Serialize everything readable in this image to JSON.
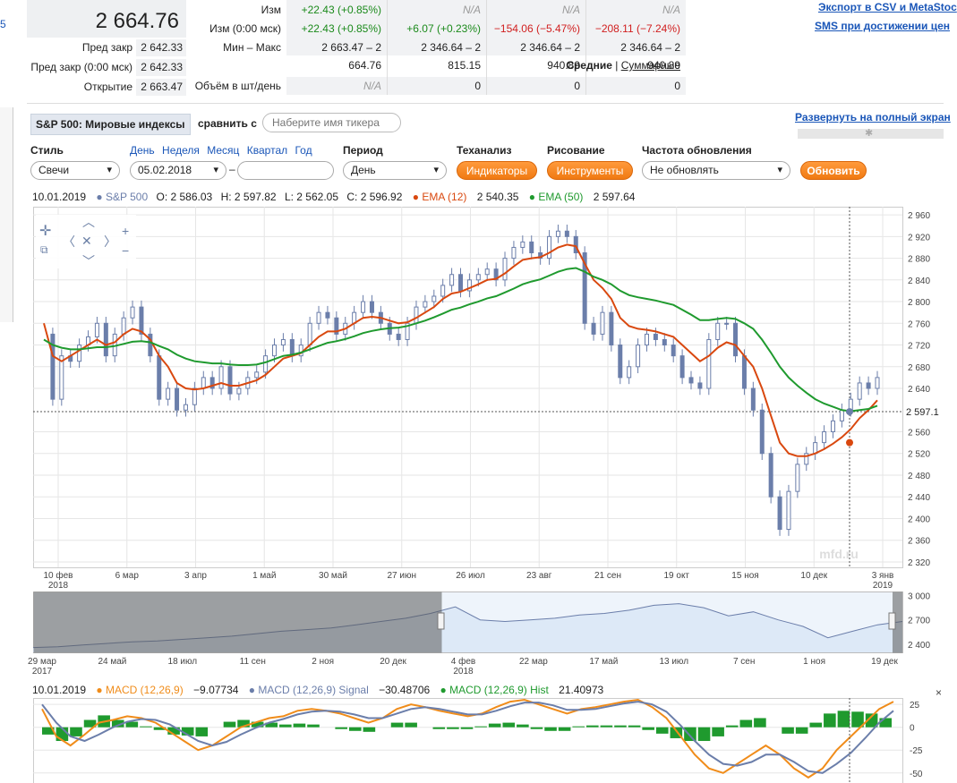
{
  "header": {
    "price": "2 664.76",
    "prev_close_label": "Пред закр",
    "prev_close": "2 642.33",
    "prev_close_msk_label": "Пред закр (0:00 мск)",
    "prev_close_msk": "2 642.33",
    "open_label": "Открытие",
    "open": "2 663.47",
    "export_link": "Экспорт в CSV и MetaStoc",
    "sms_link": "SMS при достижении цен",
    "left_edge_char": "5"
  },
  "stats": {
    "row_labels": [
      "Изм",
      "Изм (0:00 мск)",
      "Мин – Макс"
    ],
    "columns": [
      {
        "chg": "+22.43 (+0.85%)",
        "chg_msk": "+22.43 (+0.85%)",
        "range": "2 663.47 – 2 664.76"
      },
      {
        "chg": "N/A",
        "chg_msk": "+6.07 (+0.23%)",
        "range": "2 346.64 – 2 815.15"
      },
      {
        "chg": "N/A",
        "chg_msk": "−154.06 (−5.47%)",
        "range": "2 346.64 – 2 940.89"
      },
      {
        "chg": "N/A",
        "chg_msk": "−208.11 (−7.24%)",
        "range": "2 346.64 – 2 940.89"
      }
    ],
    "avg_label": "Средние",
    "sum_label": "Суммарные",
    "volume_label": "Объём в шт/день",
    "volume": [
      "N/A",
      "0",
      "0",
      "0"
    ]
  },
  "toolbar": {
    "ticker": "S&P 500: Мировые индексы",
    "compare_label": "сравнить с",
    "compare_placeholder": "Наберите имя тикера",
    "fullscreen_link": "Развернуть на полный экран",
    "style_label": "Стиль",
    "style_value": "Свечи",
    "periods": [
      "День",
      "Неделя",
      "Месяц",
      "Квартал",
      "Год"
    ],
    "date_from": "05.02.2018",
    "date_sep": "–",
    "date_to": "",
    "period_label": "Период",
    "period_value": "День",
    "ta_label": "Теханализ",
    "ta_button": "Индикаторы",
    "draw_label": "Рисование",
    "draw_button": "Инструменты",
    "refresh_label": "Частота обновления",
    "refresh_value": "Не обновлять",
    "update_button": "Обновить"
  },
  "legend": {
    "date": "10.01.2019",
    "series": "S&P 500",
    "o": "O: 2 586.03",
    "h": "H: 2 597.82",
    "l": "L: 2 562.05",
    "c": "C: 2 596.92",
    "ema12": "EMA (12)",
    "ema12_val": "2 540.35",
    "ema50": "EMA (50)",
    "ema50_val": "2 597.64"
  },
  "macd_legend": {
    "date": "10.01.2019",
    "macd": "MACD (12,26,9)",
    "macd_val": "−9.07734",
    "signal": "MACD (12,26,9) Signal",
    "signal_val": "−30.48706",
    "hist": "MACD (12,26,9) Hist",
    "hist_val": "21.40973"
  },
  "colors": {
    "price": "#6b7eaa",
    "ema12": "#d9480f",
    "ema50": "#1f9a2e",
    "macd": "#f08c1a",
    "signal": "#6b7eaa",
    "hist": "#1f9a2e",
    "accent": "#f07a12"
  },
  "chart_data": [
    {
      "type": "line",
      "title": "S&P 500",
      "x_labels": [
        "10 фев\n2018",
        "6 мар",
        "3 апр",
        "1 май",
        "30 май",
        "27 июн",
        "26 июл",
        "23 авг",
        "21 сен",
        "19 окт",
        "15 ноя",
        "10 дек",
        "3 янв\n2019"
      ],
      "y_ticks": [
        2320,
        2360,
        2400,
        2440,
        2480,
        2520,
        2560,
        2640,
        2680,
        2720,
        2760,
        2800,
        2840,
        2880,
        2920,
        2960
      ],
      "ylim": [
        2310,
        2975
      ],
      "current_value_label": "2 597.1",
      "current_value": 2597.1,
      "watermark": "mfd.ru",
      "series": [
        {
          "name": "S&P 500",
          "values": [
            2740,
            2620,
            2700,
            2690,
            2720,
            2735,
            2760,
            2700,
            2740,
            2770,
            2790,
            2740,
            2700,
            2620,
            2640,
            2600,
            2610,
            2640,
            2660,
            2640,
            2680,
            2630,
            2640,
            2660,
            2670,
            2700,
            2720,
            2730,
            2700,
            2720,
            2760,
            2780,
            2770,
            2740,
            2760,
            2780,
            2800,
            2780,
            2760,
            2740,
            2730,
            2760,
            2790,
            2800,
            2810,
            2830,
            2850,
            2820,
            2840,
            2850,
            2860,
            2840,
            2880,
            2900,
            2910,
            2890,
            2880,
            2920,
            2930,
            2920,
            2890,
            2760,
            2740,
            2780,
            2720,
            2660,
            2680,
            2720,
            2740,
            2730,
            2720,
            2700,
            2660,
            2650,
            2640,
            2730,
            2760,
            2760,
            2700,
            2640,
            2600,
            2520,
            2440,
            2380,
            2450,
            2500,
            2520,
            2540,
            2560,
            2580,
            2600,
            2620,
            2650,
            2640,
            2660
          ]
        },
        {
          "name": "EMA (12)",
          "values": [
            2760,
            2700,
            2690,
            2700,
            2710,
            2720,
            2730,
            2720,
            2725,
            2740,
            2750,
            2745,
            2730,
            2700,
            2680,
            2650,
            2640,
            2638,
            2640,
            2645,
            2650,
            2645,
            2645,
            2650,
            2655,
            2665,
            2680,
            2695,
            2700,
            2705,
            2720,
            2735,
            2745,
            2745,
            2750,
            2760,
            2770,
            2772,
            2770,
            2765,
            2760,
            2762,
            2770,
            2780,
            2790,
            2805,
            2815,
            2818,
            2825,
            2832,
            2840,
            2842,
            2852,
            2865,
            2877,
            2880,
            2882,
            2890,
            2900,
            2905,
            2902,
            2870,
            2840,
            2825,
            2805,
            2770,
            2755,
            2750,
            2748,
            2745,
            2740,
            2735,
            2720,
            2705,
            2690,
            2700,
            2715,
            2725,
            2720,
            2700,
            2680,
            2640,
            2590,
            2540,
            2520,
            2515,
            2515,
            2520,
            2528,
            2538,
            2550,
            2565,
            2585,
            2600,
            2618
          ]
        },
        {
          "name": "EMA (50)",
          "values": [
            2730,
            2720,
            2715,
            2712,
            2712,
            2714,
            2716,
            2716,
            2718,
            2722,
            2726,
            2727,
            2725,
            2718,
            2712,
            2702,
            2695,
            2690,
            2688,
            2686,
            2686,
            2684,
            2683,
            2683,
            2684,
            2688,
            2694,
            2700,
            2702,
            2706,
            2712,
            2718,
            2724,
            2727,
            2731,
            2736,
            2742,
            2746,
            2749,
            2751,
            2752,
            2755,
            2760,
            2765,
            2771,
            2778,
            2785,
            2789,
            2795,
            2800,
            2806,
            2810,
            2817,
            2824,
            2832,
            2837,
            2841,
            2848,
            2855,
            2860,
            2862,
            2855,
            2846,
            2840,
            2832,
            2820,
            2812,
            2808,
            2805,
            2802,
            2798,
            2794,
            2785,
            2776,
            2766,
            2766,
            2768,
            2770,
            2768,
            2760,
            2750,
            2730,
            2706,
            2680,
            2660,
            2645,
            2632,
            2620,
            2612,
            2606,
            2600,
            2598,
            2600,
            2602,
            2608
          ]
        }
      ]
    },
    {
      "type": "area",
      "title": "",
      "x_labels": [
        "29 мар\n2017",
        "24 май",
        "18 июл",
        "11 сен",
        "2 ноя",
        "20 дек",
        "4 фев\n2018",
        "22 мар",
        "17 май",
        "13 июл",
        "7 сен",
        "1 ноя",
        "19 дек"
      ],
      "y_ticks": [
        2400,
        2700,
        3000
      ],
      "ylim": [
        2300,
        3050
      ],
      "selection": [
        "4 фев 2018",
        "10.01.2019"
      ],
      "series": [
        {
          "name": "S&P 500",
          "values": [
            2360,
            2370,
            2390,
            2410,
            2430,
            2440,
            2460,
            2480,
            2500,
            2530,
            2560,
            2580,
            2600,
            2640,
            2680,
            2720,
            2780,
            2860,
            2700,
            2680,
            2700,
            2720,
            2760,
            2780,
            2820,
            2880,
            2900,
            2850,
            2750,
            2800,
            2700,
            2620,
            2480,
            2560,
            2640,
            2680
          ]
        }
      ]
    },
    {
      "type": "bar",
      "title": "MACD (12,26,9)",
      "y_ticks": [
        25,
        0,
        -25,
        -50
      ],
      "ylim": [
        -60,
        32
      ],
      "series": [
        {
          "name": "MACD (12,26,9)",
          "values": [
            20,
            -10,
            -20,
            -8,
            5,
            8,
            12,
            10,
            5,
            -5,
            -15,
            -25,
            -20,
            -10,
            0,
            5,
            10,
            12,
            18,
            20,
            18,
            15,
            10,
            5,
            10,
            20,
            25,
            22,
            18,
            15,
            12,
            15,
            22,
            28,
            30,
            25,
            20,
            15,
            20,
            22,
            25,
            28,
            30,
            22,
            10,
            -10,
            -30,
            -45,
            -50,
            -40,
            -30,
            -20,
            -30,
            -45,
            -55,
            -45,
            -25,
            -10,
            5,
            20,
            28
          ]
        },
        {
          "name": "MACD (12,26,9) Signal",
          "values": [
            25,
            5,
            -10,
            -15,
            -8,
            0,
            6,
            9,
            8,
            3,
            -6,
            -15,
            -20,
            -16,
            -8,
            -1,
            5,
            9,
            14,
            17,
            18,
            17,
            14,
            10,
            10,
            15,
            20,
            22,
            20,
            17,
            14,
            14,
            18,
            23,
            27,
            27,
            24,
            19,
            19,
            20,
            23,
            26,
            28,
            25,
            17,
            2,
            -15,
            -30,
            -40,
            -42,
            -38,
            -30,
            -30,
            -38,
            -48,
            -50,
            -40,
            -28,
            -12,
            5,
            18
          ]
        },
        {
          "name": "MACD (12,26,9) Hist",
          "values": [
            -8,
            -15,
            -10,
            8,
            13,
            8,
            6,
            1,
            -3,
            -8,
            -9,
            -10,
            0,
            6,
            8,
            6,
            5,
            3,
            4,
            3,
            0,
            -2,
            -4,
            -5,
            0,
            5,
            5,
            0,
            -2,
            -2,
            -2,
            1,
            4,
            5,
            3,
            -2,
            -4,
            -4,
            1,
            2,
            2,
            2,
            2,
            -3,
            -7,
            -12,
            -15,
            -15,
            -10,
            2,
            8,
            10,
            0,
            -7,
            -7,
            5,
            15,
            18,
            17,
            15,
            10
          ]
        }
      ]
    }
  ]
}
